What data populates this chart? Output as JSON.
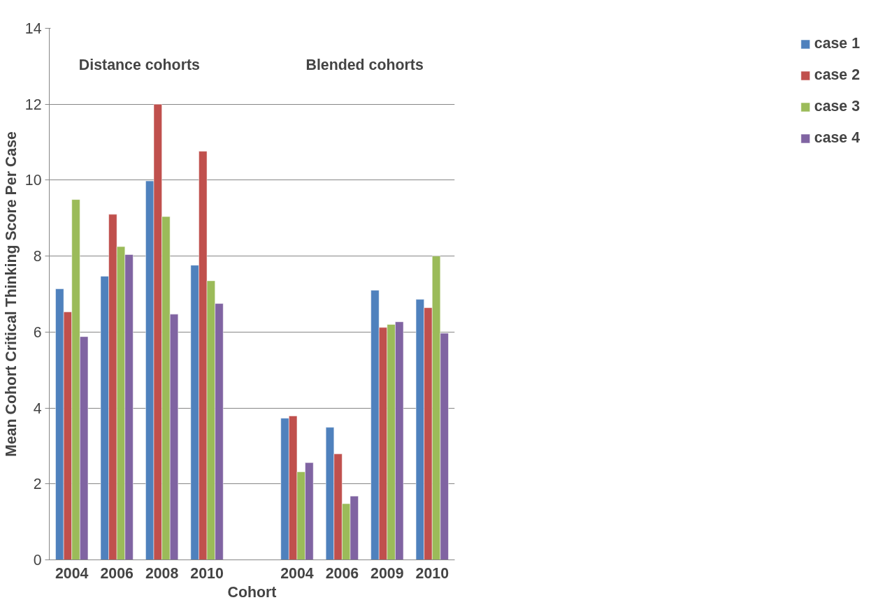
{
  "chart_data": {
    "type": "bar",
    "xlabel": "Cohort",
    "ylabel": "Mean Cohort Critical Thinking Score Per Case",
    "categories": [
      "2004",
      "2006",
      "2008",
      "2010",
      null,
      "2004",
      "2006",
      "2009",
      "2010"
    ],
    "series": [
      {
        "name": "case 1",
        "color": "#4f81bd",
        "values": [
          7.14,
          7.47,
          9.98,
          7.76,
          null,
          3.73,
          3.49,
          7.1,
          6.86
        ]
      },
      {
        "name": "case 2",
        "color": "#c0504d",
        "values": [
          6.53,
          9.1,
          12.0,
          10.76,
          null,
          3.79,
          2.79,
          6.12,
          6.64
        ]
      },
      {
        "name": "case 3",
        "color": "#9bbb59",
        "values": [
          9.49,
          8.25,
          9.04,
          7.35,
          null,
          2.32,
          1.48,
          6.2,
          8.0
        ]
      },
      {
        "name": "case 4",
        "color": "#8064a2",
        "values": [
          5.88,
          8.04,
          6.47,
          6.75,
          null,
          2.56,
          1.68,
          6.27,
          5.97
        ]
      }
    ],
    "annotations": [
      "Distance cohorts",
      "Blended cohorts"
    ],
    "ylim": [
      0,
      14
    ],
    "yticks": [
      0,
      2,
      4,
      6,
      8,
      10,
      12,
      14
    ],
    "grid": "y",
    "legend": "right"
  }
}
